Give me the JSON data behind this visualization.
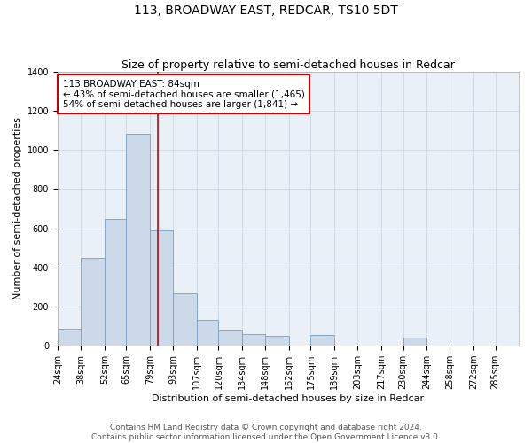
{
  "title": "113, BROADWAY EAST, REDCAR, TS10 5DT",
  "subtitle": "Size of property relative to semi-detached houses in Redcar",
  "xlabel": "Distribution of semi-detached houses by size in Redcar",
  "ylabel": "Number of semi-detached properties",
  "footer_line1": "Contains HM Land Registry data © Crown copyright and database right 2024.",
  "footer_line2": "Contains public sector information licensed under the Open Government Licence v3.0.",
  "annotation_title": "113 BROADWAY EAST: 84sqm",
  "annotation_line1": "← 43% of semi-detached houses are smaller (1,465)",
  "annotation_line2": "54% of semi-detached houses are larger (1,841) →",
  "property_size": 84,
  "bin_edges": [
    24,
    38,
    52,
    65,
    79,
    93,
    107,
    120,
    134,
    148,
    162,
    175,
    189,
    203,
    217,
    230,
    244,
    258,
    272,
    285,
    299
  ],
  "bar_heights": [
    85,
    450,
    650,
    1080,
    590,
    270,
    130,
    80,
    60,
    50,
    0,
    55,
    0,
    0,
    0,
    40,
    0,
    0,
    0,
    0
  ],
  "bar_color": "#ccd9e8",
  "bar_edge_color": "#7a9dbf",
  "vline_color": "#cc0000",
  "annotation_box_edgecolor": "#cc0000",
  "annotation_box_facecolor": "#ffffff",
  "background_color": "#eaf0f8",
  "ylim": [
    0,
    1400
  ],
  "yticks": [
    0,
    200,
    400,
    600,
    800,
    1000,
    1200,
    1400
  ],
  "title_fontsize": 10,
  "subtitle_fontsize": 9,
  "axis_label_fontsize": 8,
  "tick_fontsize": 7,
  "annotation_fontsize": 7.5,
  "footer_fontsize": 6.5
}
